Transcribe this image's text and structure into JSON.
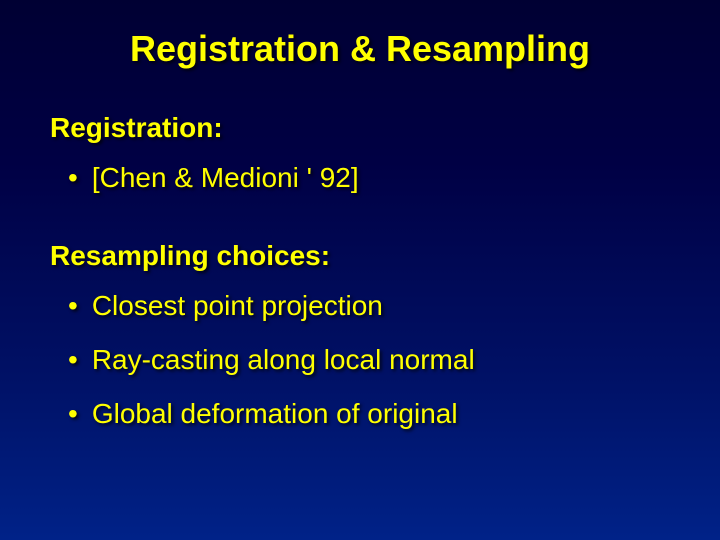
{
  "slide": {
    "title": "Registration & Resampling",
    "sections": [
      {
        "heading": "Registration:",
        "bullets": [
          "[Chen & Medioni ' 92]"
        ]
      },
      {
        "heading": "Resampling choices:",
        "bullets": [
          "Closest point projection",
          "Ray-casting along local normal",
          "Global deformation of original"
        ]
      }
    ]
  },
  "style": {
    "background_gradient_top": "#000033",
    "background_gradient_bottom": "#002288",
    "text_color": "#ffff00",
    "title_fontsize": 36,
    "heading_fontsize": 28,
    "bullet_fontsize": 28,
    "font_family": "Arial",
    "shadow_color": "#000000"
  }
}
